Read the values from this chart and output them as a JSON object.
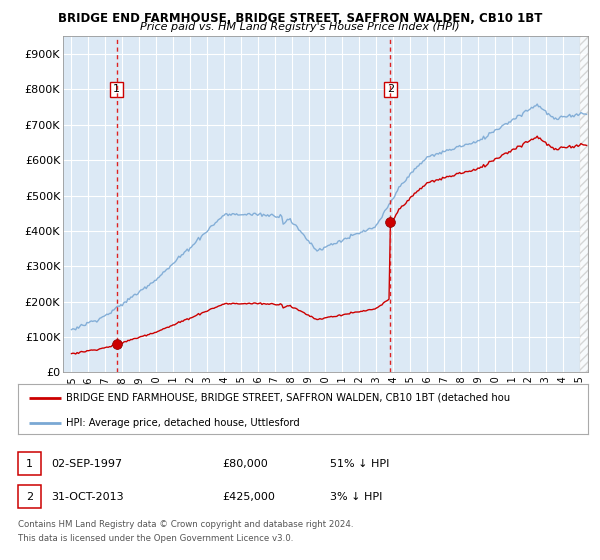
{
  "title1": "BRIDGE END FARMHOUSE, BRIDGE STREET, SAFFRON WALDEN, CB10 1BT",
  "title2": "Price paid vs. HM Land Registry's House Price Index (HPI)",
  "ylim": [
    0,
    950000
  ],
  "yticks": [
    0,
    100000,
    200000,
    300000,
    400000,
    500000,
    600000,
    700000,
    800000,
    900000
  ],
  "ytick_labels": [
    "£0",
    "£100K",
    "£200K",
    "£300K",
    "£400K",
    "£500K",
    "£600K",
    "£700K",
    "£800K",
    "£900K"
  ],
  "xlim_start": 1994.5,
  "xlim_end": 2025.5,
  "xticks": [
    1995,
    1996,
    1997,
    1998,
    1999,
    2000,
    2001,
    2002,
    2003,
    2004,
    2005,
    2006,
    2007,
    2008,
    2009,
    2010,
    2011,
    2012,
    2013,
    2014,
    2015,
    2016,
    2017,
    2018,
    2019,
    2020,
    2021,
    2022,
    2023,
    2024,
    2025
  ],
  "background_color": "#dce9f5",
  "grid_color": "#ffffff",
  "sale1_x": 1997.67,
  "sale1_y": 80000,
  "sale2_x": 2013.83,
  "sale2_y": 425000,
  "line_color_red": "#cc0000",
  "line_color_blue": "#7aa8d4",
  "legend_label_red": "BRIDGE END FARMHOUSE, BRIDGE STREET, SAFFRON WALDEN, CB10 1BT (detached hou",
  "legend_label_blue": "HPI: Average price, detached house, Uttlesford",
  "sale1_date": "02-SEP-1997",
  "sale1_price": "£80,000",
  "sale1_hpi": "51% ↓ HPI",
  "sale2_date": "31-OCT-2013",
  "sale2_price": "£425,000",
  "sale2_hpi": "3% ↓ HPI",
  "footer1": "Contains HM Land Registry data © Crown copyright and database right 2024.",
  "footer2": "This data is licensed under the Open Government Licence v3.0."
}
